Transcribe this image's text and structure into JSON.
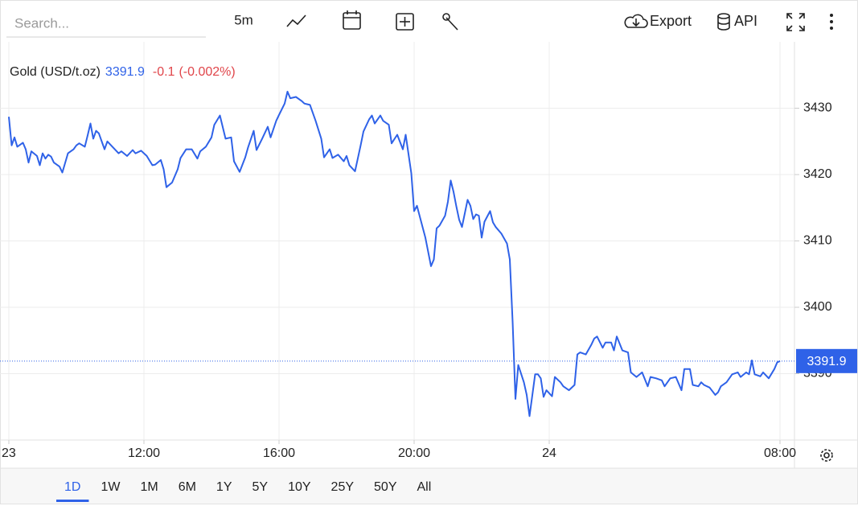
{
  "toolbar": {
    "search_placeholder": "Search...",
    "interval": "5m",
    "export": "Export",
    "api": "API"
  },
  "ranges": {
    "items": [
      "1D",
      "1W",
      "1M",
      "6M",
      "1Y",
      "5Y",
      "10Y",
      "25Y",
      "50Y",
      "All"
    ],
    "selected": 0
  },
  "chart_data": {
    "type": "line",
    "series": [
      {
        "name": "Gold (USD/t.oz)",
        "color": "#2f62e8",
        "values": [
          3428.7,
          3424.4,
          3425.6,
          3424.2,
          3424.8,
          3423.8,
          3421.8,
          3423.5,
          3422.8,
          3421.4,
          3423.2,
          3422.4,
          3423.0,
          3422.7,
          3421.8,
          3421.2,
          3420.3,
          3423.2,
          3423.8,
          3424.4,
          3424.7,
          3424.2,
          3425.9,
          3427.7,
          3425.4,
          3426.6,
          3426.2,
          3423.8,
          3425.0,
          3424.1,
          3423.2,
          3423.5,
          3422.8,
          3423.7,
          3423.2,
          3423.6,
          3422.8,
          3421.4,
          3421.5,
          3422.2,
          3420.8,
          3418.1,
          3418.8,
          3420.8,
          3422.5,
          3423.8,
          3423.8,
          3422.4,
          3423.5,
          3424.2,
          3425.6,
          3427.5,
          3428.9,
          3425.4,
          3425.6,
          3422.0,
          3420.4,
          3422.6,
          3424.1,
          3426.6,
          3423.7,
          3425.4,
          3427.2,
          3425.6,
          3428.1,
          3429.0,
          3430.7,
          3432.5,
          3431.5,
          3431.7,
          3431.1,
          3430.7,
          3430.5,
          3428.1,
          3425.4,
          3422.6,
          3423.8,
          3422.5,
          3423.0,
          3422.0,
          3422.8,
          3421.4,
          3420.5,
          3424.4,
          3426.5,
          3428.3,
          3428.9,
          3427.7,
          3428.9,
          3428.1,
          3427.5,
          3424.7,
          3426.0,
          3423.8,
          3426.0,
          3420.2,
          3414.5,
          3415.3,
          3412.1,
          3410.5,
          3406.2,
          3407.2,
          3411.9,
          3412.3,
          3413.8,
          3415.9,
          3419.1,
          3417.4,
          3415.2,
          3413.2,
          3412.1,
          3416.2,
          3415.3,
          3413.3,
          3414.0,
          3413.8,
          3410.5,
          3412.9,
          3414.5,
          3412.8,
          3412.1,
          3411.1,
          3409.6,
          3407.2,
          3397.8,
          3386.2,
          3391.3,
          3388.7,
          3386.8,
          3383.6,
          3389.9,
          3389.9,
          3389.3,
          3386.5,
          3387.5,
          3386.6,
          3389.5,
          3388.7,
          3388.1,
          3387.5,
          3388.3,
          3392.9,
          3393.2,
          3392.9,
          3394.4,
          3395.3,
          3395.6,
          3393.9,
          3394.7,
          3394.7,
          3393.5,
          3395.6,
          3393.5,
          3393.2,
          3390.2,
          3389.5,
          3390.2,
          3388.1,
          3389.5,
          3389.3,
          3389.0,
          3388.1,
          3389.3,
          3389.5,
          3387.5,
          3390.7,
          3390.7,
          3388.3,
          3388.1,
          3388.7,
          3388.3,
          3387.9,
          3386.8,
          3387.2,
          3388.1,
          3388.7,
          3389.9,
          3390.2,
          3389.5,
          3390.2,
          3389.9,
          3392.0,
          3389.9,
          3389.6,
          3390.2,
          3389.3,
          3390.7,
          3391.7,
          3391.9
        ]
      }
    ],
    "x": [
      0,
      1,
      2,
      3,
      5,
      6,
      7,
      8,
      10,
      11,
      12,
      13,
      14,
      15,
      16,
      18,
      19,
      21,
      23,
      24,
      25,
      27,
      28,
      29,
      30,
      31,
      32,
      34,
      35,
      37,
      39,
      40,
      42,
      44,
      45,
      47,
      49,
      51,
      52,
      54,
      55,
      56,
      58,
      60,
      61,
      63,
      65,
      67,
      68,
      70,
      72,
      73,
      75,
      77,
      79,
      80,
      82,
      84,
      85,
      87,
      88,
      90,
      92,
      93,
      95,
      96,
      98,
      99,
      100,
      102,
      104,
      105,
      107,
      109,
      111,
      112,
      114,
      115,
      117,
      119,
      120,
      121,
      123,
      125,
      126,
      128,
      129,
      130,
      132,
      133,
      135,
      136,
      138,
      140,
      141,
      143,
      144,
      145,
      147,
      148,
      150,
      151,
      152,
      153,
      155,
      156,
      157,
      158,
      159,
      160,
      161,
      163,
      164,
      165,
      166,
      167,
      168,
      169,
      171,
      172,
      173,
      175,
      177,
      178,
      179,
      180,
      181,
      183,
      184,
      185,
      187,
      188,
      189,
      190,
      191,
      193,
      194,
      196,
      197,
      199,
      201,
      202,
      203,
      205,
      207,
      208,
      209,
      211,
      212,
      214,
      215,
      216,
      218,
      220,
      221,
      223,
      225,
      227,
      228,
      230,
      232,
      233,
      235,
      237,
      239,
      240,
      242,
      243,
      245,
      246,
      247,
      249,
      251,
      252,
      253,
      255,
      257,
      259,
      260,
      262,
      263,
      264,
      265,
      267,
      268,
      270,
      272,
      273,
      274
    ],
    "xlim": [
      -1,
      279
    ],
    "xticks": [
      {
        "value": 0,
        "label": "23"
      },
      {
        "value": 48,
        "label": "12:00"
      },
      {
        "value": 96,
        "label": "16:00"
      },
      {
        "value": 144,
        "label": "20:00"
      },
      {
        "value": 192,
        "label": "24"
      },
      {
        "value": 274,
        "label": "08:00"
      }
    ],
    "ylim": [
      3380,
      3440
    ],
    "yticks": [
      3390,
      3400,
      3410,
      3420,
      3430
    ],
    "grid": true,
    "last_value": 3391.9,
    "change": -0.1,
    "change_pct": {
      "value": -0.002,
      "label": "(-0.002%)"
    },
    "up_color": "#2f62e8",
    "down_color": "#e0454a",
    "price_tag_color": "#2f62e8"
  }
}
